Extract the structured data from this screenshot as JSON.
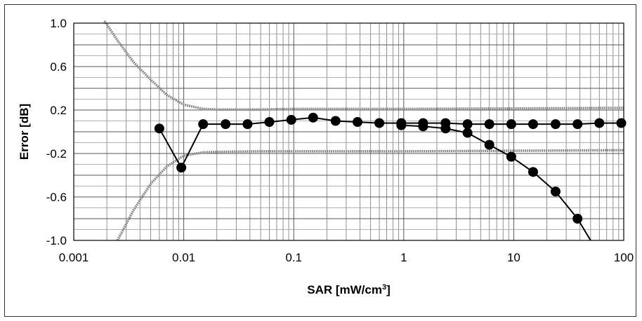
{
  "chart_data": {
    "type": "line",
    "title": "",
    "xlabel": "SAR [mW/cm",
    "xlabel_superscript": "3",
    "xlabel_suffix": "]",
    "ylabel": "Error [dB]",
    "xscale": "log",
    "xlim": [
      0.001,
      100
    ],
    "ylim": [
      -1.0,
      1.0
    ],
    "grid": true,
    "legend": "none",
    "x_tick_labels": [
      "0.001",
      "0.01",
      "0.1",
      "1",
      "10",
      "100"
    ],
    "x_ticks": [
      0.001,
      0.01,
      0.1,
      1,
      10,
      100
    ],
    "y_tick_labels": [
      "1.0",
      "0.6",
      "0.2",
      "-0.2",
      "-0.6",
      "-1.0"
    ],
    "y_ticks": [
      1.0,
      0.6,
      0.2,
      -0.2,
      -0.6,
      -1.0
    ],
    "series": [
      {
        "style": "line",
        "color": "#8a8a8a",
        "x": [
          0.0019,
          0.0025,
          0.0035,
          0.005,
          0.007,
          0.01,
          0.015,
          0.02,
          0.05,
          0.1,
          1,
          10,
          100
        ],
        "y": [
          1.02,
          0.84,
          0.64,
          0.48,
          0.34,
          0.25,
          0.21,
          0.205,
          0.205,
          0.21,
          0.21,
          0.215,
          0.22
        ]
      },
      {
        "style": "line",
        "color": "#8a8a8a",
        "x": [
          0.0025,
          0.0035,
          0.005,
          0.007,
          0.01,
          0.015,
          0.02,
          0.05,
          0.1,
          1,
          10,
          100
        ],
        "y": [
          -1.0,
          -0.72,
          -0.48,
          -0.32,
          -0.22,
          -0.19,
          -0.185,
          -0.18,
          -0.18,
          -0.18,
          -0.175,
          -0.17
        ]
      },
      {
        "style": "line-markers",
        "color": "#000000",
        "x": [
          0.006,
          0.0095,
          0.015,
          0.024,
          0.038,
          0.06,
          0.095,
          0.15,
          0.24,
          0.38,
          0.6,
          0.95,
          1.5,
          2.4,
          3.8,
          6,
          9.5,
          15,
          24,
          38,
          60,
          95
        ],
        "y": [
          0.03,
          -0.33,
          0.07,
          0.07,
          0.07,
          0.09,
          0.11,
          0.13,
          0.1,
          0.09,
          0.08,
          0.08,
          0.08,
          0.08,
          0.07,
          0.07,
          0.07,
          0.07,
          0.07,
          0.07,
          0.08,
          0.08
        ]
      },
      {
        "style": "line-markers",
        "color": "#000000",
        "x": [
          0.95,
          1.5,
          2.4,
          3.8,
          6,
          9.5,
          15,
          24,
          38
        ],
        "y": [
          0.06,
          0.05,
          0.03,
          -0.01,
          -0.12,
          -0.23,
          -0.37,
          -0.55,
          -0.8
        ]
      },
      {
        "style": "line",
        "color": "#000000",
        "x": [
          38,
          50
        ],
        "y": [
          -0.8,
          -1.0
        ]
      }
    ]
  }
}
